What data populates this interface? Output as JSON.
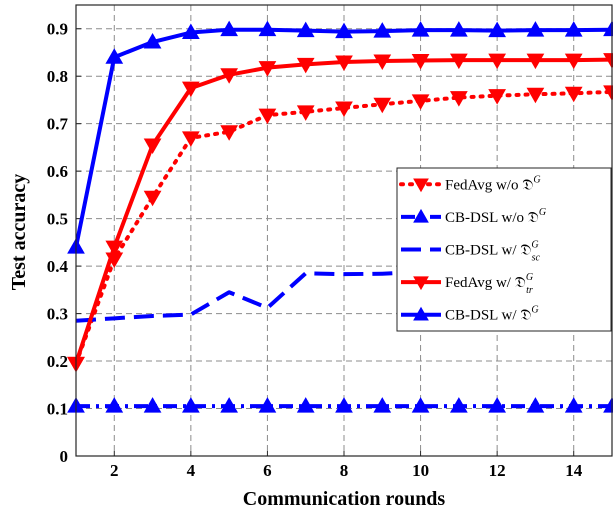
{
  "chart_data": {
    "type": "line",
    "xlabel": "Communication rounds",
    "ylabel": "Test accuracy",
    "xlim": [
      1,
      15
    ],
    "ylim": [
      0,
      0.95
    ],
    "xticks": [
      2,
      4,
      6,
      8,
      10,
      12,
      14
    ],
    "xtick_labels": [
      "2",
      "4",
      "6",
      "8",
      "10",
      "12",
      "14"
    ],
    "yticks": [
      0,
      0.1,
      0.2,
      0.3,
      0.4,
      0.5,
      0.6,
      0.7,
      0.8,
      0.9
    ],
    "ytick_labels": [
      "0",
      "0.1",
      "0.2",
      "0.3",
      "0.4",
      "0.5",
      "0.6",
      "0.7",
      "0.8",
      "0.9"
    ],
    "grid": true,
    "legend_position": "right",
    "x": [
      1,
      2,
      3,
      4,
      5,
      6,
      7,
      8,
      9,
      10,
      11,
      12,
      13,
      14,
      15
    ],
    "series": [
      {
        "name": "FedAvg w/o 𝔇",
        "sup": "G",
        "sub": "",
        "color": "#ff0000",
        "dash": "dot",
        "marker": "triangle-down",
        "values": [
          0.195,
          0.415,
          0.545,
          0.67,
          0.683,
          0.718,
          0.725,
          0.733,
          0.741,
          0.748,
          0.755,
          0.759,
          0.762,
          0.764,
          0.767
        ]
      },
      {
        "name": "CB-DSL w/o 𝔇",
        "sup": "G",
        "sub": "",
        "color": "#0000ff",
        "dash": "dashdot",
        "marker": "triangle-up",
        "values": [
          0.105,
          0.105,
          0.105,
          0.105,
          0.105,
          0.105,
          0.105,
          0.105,
          0.105,
          0.105,
          0.105,
          0.105,
          0.105,
          0.105,
          0.105
        ]
      },
      {
        "name": "CB-DSL w/ 𝔇",
        "sup": "G",
        "sub": "sc",
        "color": "#0000ff",
        "dash": "dash",
        "marker": "none",
        "values": [
          0.285,
          0.29,
          0.295,
          0.298,
          0.345,
          0.312,
          0.385,
          0.383,
          0.384,
          0.388,
          0.395,
          0.39,
          0.392,
          0.393,
          0.392
        ]
      },
      {
        "name": "FedAvg w/ 𝔇",
        "sup": "G",
        "sub": "tr",
        "color": "#ff0000",
        "dash": "solid",
        "marker": "triangle-down",
        "values": [
          0.195,
          0.44,
          0.655,
          0.775,
          0.803,
          0.818,
          0.825,
          0.83,
          0.832,
          0.833,
          0.834,
          0.834,
          0.834,
          0.834,
          0.835
        ]
      },
      {
        "name": "CB-DSL w/ 𝔇",
        "sup": "G",
        "sub": "",
        "color": "#0000ff",
        "dash": "solid",
        "marker": "triangle-up",
        "values": [
          0.44,
          0.84,
          0.872,
          0.892,
          0.898,
          0.898,
          0.896,
          0.894,
          0.895,
          0.897,
          0.897,
          0.896,
          0.897,
          0.897,
          0.898
        ]
      }
    ]
  }
}
